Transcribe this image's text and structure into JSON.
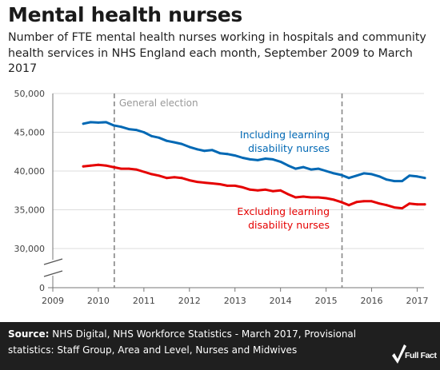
{
  "title": "Mental health nurses",
  "subtitle": "Number of FTE mental health nurses working in hospitals and community health services in NHS England each month, September 2009 to March 2017",
  "source": {
    "label": "Source:",
    "text": " NHS Digital, NHS Workforce Statistics - March 2017, Provisional statistics: Staff Group, Area and Level, Nurses and Midwives"
  },
  "brand": "Full Fact",
  "colors": {
    "including": "#0068b4",
    "excluding": "#e50000",
    "axis": "#777777",
    "grid": "#dddddd",
    "footer": "#1f1f1f"
  },
  "chart_data": {
    "type": "line",
    "xlim": [
      2009,
      2017.15
    ],
    "ylim": [
      0,
      50000
    ],
    "axis_break": "between 0 and 25,000 (broken y-axis)",
    "x_ticks": [
      "2009",
      "2010",
      "2011",
      "2012",
      "2013",
      "2014",
      "2015",
      "2016",
      "2017"
    ],
    "y_ticks": [
      "0",
      "30,000",
      "35,000",
      "40,000",
      "45,000",
      "50,000"
    ],
    "annotations": [
      {
        "x": 2010.35,
        "label": "General election"
      },
      {
        "x": 2015.35,
        "label": ""
      }
    ],
    "series": [
      {
        "name": "Including learning disability nurses",
        "label_lines": [
          "Including learning",
          "disability nurses"
        ],
        "color": "#0068b4",
        "x": [
          2009.67,
          2009.83,
          2010.0,
          2010.17,
          2010.33,
          2010.5,
          2010.67,
          2010.83,
          2011.0,
          2011.17,
          2011.33,
          2011.5,
          2011.67,
          2011.83,
          2012.0,
          2012.17,
          2012.33,
          2012.5,
          2012.67,
          2012.83,
          2013.0,
          2013.17,
          2013.33,
          2013.5,
          2013.67,
          2013.83,
          2014.0,
          2014.17,
          2014.33,
          2014.5,
          2014.67,
          2014.83,
          2015.0,
          2015.17,
          2015.33,
          2015.5,
          2015.67,
          2015.83,
          2016.0,
          2016.17,
          2016.33,
          2016.5,
          2016.67,
          2016.83,
          2017.0,
          2017.17
        ],
        "y": [
          46100,
          46300,
          46250,
          46300,
          45900,
          45700,
          45400,
          45300,
          45000,
          44500,
          44300,
          43900,
          43700,
          43500,
          43100,
          42800,
          42600,
          42700,
          42300,
          42200,
          42000,
          41700,
          41500,
          41400,
          41600,
          41500,
          41200,
          40700,
          40300,
          40500,
          40200,
          40300,
          40000,
          39700,
          39500,
          39100,
          39400,
          39700,
          39600,
          39300,
          38900,
          38700,
          38700,
          39400,
          39300,
          39100
        ]
      },
      {
        "name": "Excluding learning disability nurses",
        "label_lines": [
          "Excluding learning",
          "disability nurses"
        ],
        "color": "#e50000",
        "x": [
          2009.67,
          2009.83,
          2010.0,
          2010.17,
          2010.33,
          2010.5,
          2010.67,
          2010.83,
          2011.0,
          2011.17,
          2011.33,
          2011.5,
          2011.67,
          2011.83,
          2012.0,
          2012.17,
          2012.33,
          2012.5,
          2012.67,
          2012.83,
          2013.0,
          2013.17,
          2013.33,
          2013.5,
          2013.67,
          2013.83,
          2014.0,
          2014.17,
          2014.33,
          2014.5,
          2014.67,
          2014.83,
          2015.0,
          2015.17,
          2015.33,
          2015.5,
          2015.67,
          2015.83,
          2016.0,
          2016.17,
          2016.33,
          2016.5,
          2016.67,
          2016.83,
          2017.0,
          2017.17
        ],
        "y": [
          40600,
          40700,
          40800,
          40700,
          40500,
          40300,
          40300,
          40200,
          39900,
          39600,
          39400,
          39100,
          39200,
          39100,
          38800,
          38600,
          38500,
          38400,
          38300,
          38100,
          38100,
          37900,
          37600,
          37500,
          37600,
          37400,
          37500,
          37000,
          36600,
          36700,
          36600,
          36600,
          36500,
          36300,
          36000,
          35600,
          36000,
          36100,
          36100,
          35800,
          35600,
          35300,
          35200,
          35800,
          35700,
          35700
        ]
      }
    ]
  }
}
